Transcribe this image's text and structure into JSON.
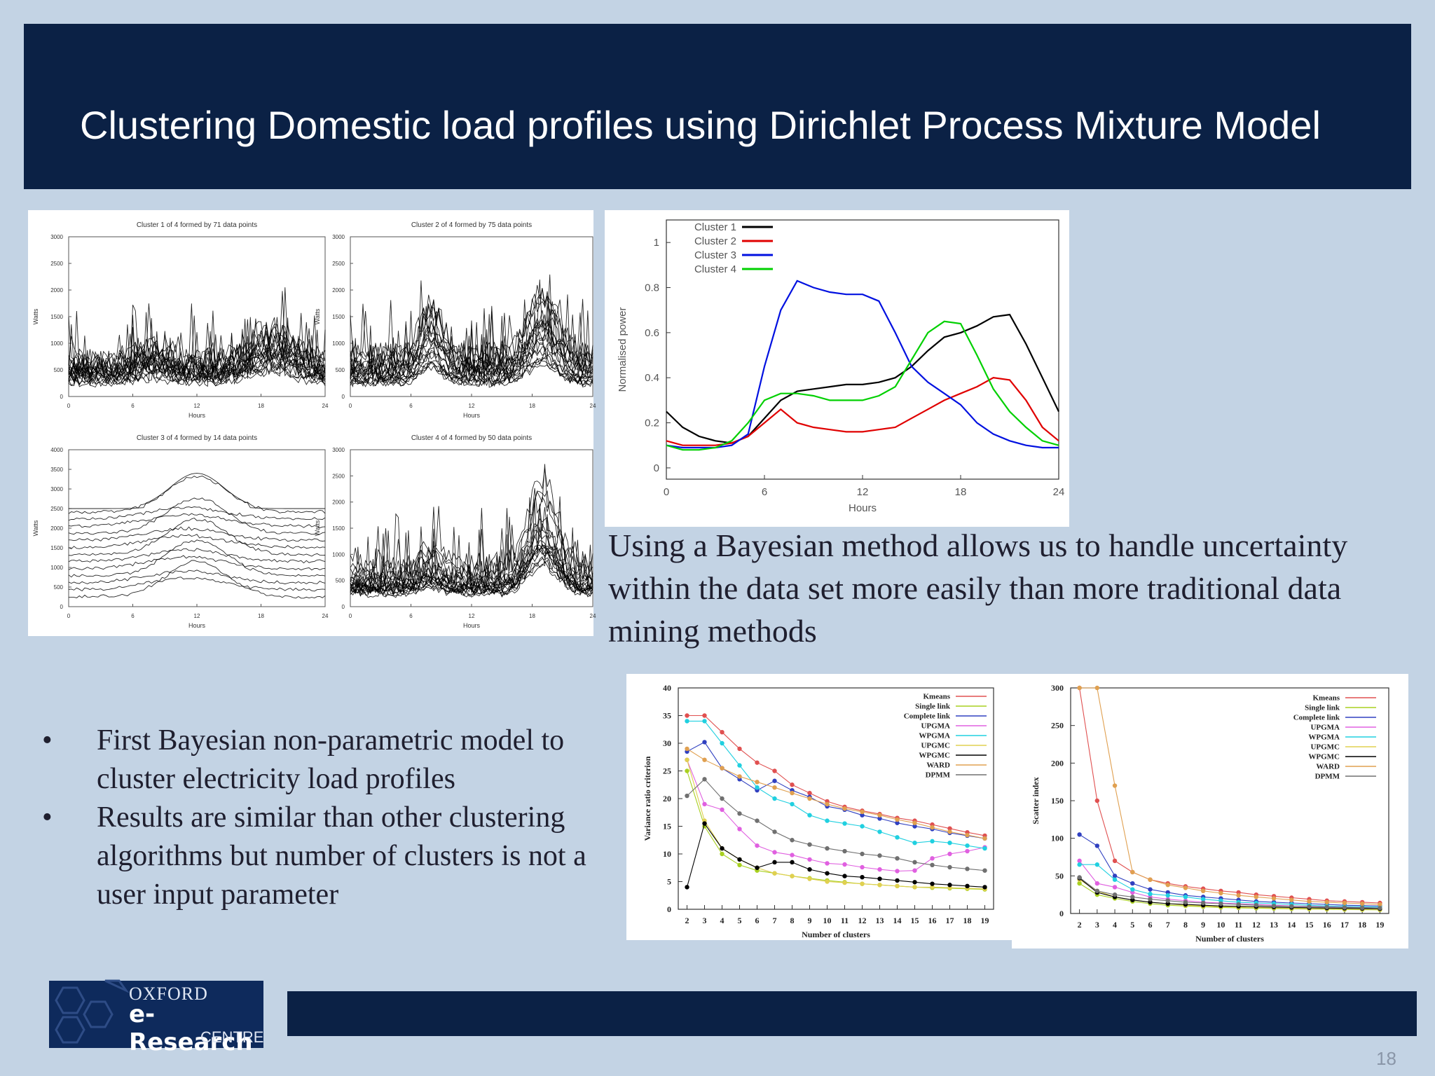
{
  "header": {
    "title": "Clustering Domestic load profiles using Dirichlet Process Mixture Model"
  },
  "paragraph": "Using a Bayesian method allows us to handle uncertainty within the data set more easily than more traditional data mining methods",
  "bullets": [
    {
      "marker": "•",
      "text": "First Bayesian non-parametric model to cluster electricity load profiles"
    },
    {
      "marker": "•",
      "text": "Results are similar than other clustering algorithms but number of clusters is not a user input parameter"
    }
  ],
  "logo": {
    "line1": "OXFORD",
    "line2": "e-Research",
    "line3": "CENTRE"
  },
  "page_number": "18",
  "colors": {
    "header_bg": "#0b2145",
    "slide_bg": "#c3d3e4",
    "text": "#1f1f2f"
  },
  "chart_data": [
    {
      "type": "line",
      "panel": "small-multiples",
      "subplots": [
        {
          "title": "Cluster 1 of 4 formed by 71 data points",
          "xlabel": "Hours",
          "ylabel": "Watts",
          "xticks": [
            "0",
            "6",
            "12",
            "18",
            "24"
          ],
          "yticks": [
            "0",
            "500",
            "1000",
            "1500",
            "2000",
            "2500",
            "3000"
          ],
          "ylim": [
            0,
            3000
          ]
        },
        {
          "title": "Cluster 2 of 4 formed by 75 data points",
          "xlabel": "Hours",
          "ylabel": "Watts",
          "xticks": [
            "0",
            "6",
            "12",
            "18",
            "24"
          ],
          "yticks": [
            "0",
            "500",
            "1000",
            "1500",
            "2000",
            "2500",
            "3000"
          ],
          "ylim": [
            0,
            3000
          ]
        },
        {
          "title": "Cluster 3 of 4 formed by 14 data points",
          "xlabel": "Hours",
          "ylabel": "Watts",
          "xticks": [
            "0",
            "6",
            "12",
            "18",
            "24"
          ],
          "yticks": [
            "0",
            "500",
            "1000",
            "1500",
            "2000",
            "2500",
            "3000",
            "3500",
            "4000"
          ],
          "ylim": [
            0,
            4000
          ]
        },
        {
          "title": "Cluster 4 of 4 formed by 50 data points",
          "xlabel": "Hours",
          "ylabel": "Watts",
          "xticks": [
            "0",
            "6",
            "12",
            "18",
            "24"
          ],
          "yticks": [
            "0",
            "500",
            "1000",
            "1500",
            "2000",
            "2500",
            "3000"
          ],
          "ylim": [
            0,
            3000
          ]
        }
      ]
    },
    {
      "type": "line",
      "xlabel": "Hours",
      "ylabel": "Normalised power",
      "xlim": [
        0,
        24
      ],
      "ylim": [
        -0.05,
        1.1
      ],
      "xticks": [
        0,
        6,
        12,
        18,
        24
      ],
      "yticks": [
        0,
        0.2,
        0.4,
        0.6,
        0.8,
        1
      ],
      "ytick_labels": [
        "0",
        "0.2",
        "0.4",
        "0.6",
        "0.8",
        "1"
      ],
      "legend_position": "top-left",
      "x": [
        0,
        1,
        2,
        3,
        4,
        5,
        6,
        7,
        8,
        9,
        10,
        11,
        12,
        13,
        14,
        15,
        16,
        17,
        18,
        19,
        20,
        21,
        22,
        23,
        24
      ],
      "series": [
        {
          "name": "Cluster 1",
          "color": "#000000",
          "values": [
            0.25,
            0.18,
            0.14,
            0.12,
            0.11,
            0.14,
            0.22,
            0.3,
            0.34,
            0.35,
            0.36,
            0.37,
            0.37,
            0.38,
            0.4,
            0.45,
            0.52,
            0.58,
            0.6,
            0.63,
            0.67,
            0.68,
            0.55,
            0.4,
            0.25
          ]
        },
        {
          "name": "Cluster 2",
          "color": "#e00000",
          "values": [
            0.12,
            0.1,
            0.1,
            0.1,
            0.11,
            0.14,
            0.2,
            0.26,
            0.2,
            0.18,
            0.17,
            0.16,
            0.16,
            0.17,
            0.18,
            0.22,
            0.26,
            0.3,
            0.33,
            0.36,
            0.4,
            0.39,
            0.3,
            0.18,
            0.12
          ]
        },
        {
          "name": "Cluster 3",
          "color": "#0010e0",
          "values": [
            0.1,
            0.09,
            0.09,
            0.09,
            0.1,
            0.15,
            0.45,
            0.7,
            0.83,
            0.8,
            0.78,
            0.77,
            0.77,
            0.74,
            0.6,
            0.45,
            0.38,
            0.33,
            0.28,
            0.2,
            0.15,
            0.12,
            0.1,
            0.09,
            0.09
          ]
        },
        {
          "name": "Cluster 4",
          "color": "#00d000",
          "values": [
            0.1,
            0.08,
            0.08,
            0.09,
            0.12,
            0.2,
            0.3,
            0.33,
            0.33,
            0.32,
            0.3,
            0.3,
            0.3,
            0.32,
            0.36,
            0.48,
            0.6,
            0.65,
            0.64,
            0.5,
            0.35,
            0.25,
            0.18,
            0.12,
            0.1
          ]
        }
      ]
    },
    {
      "type": "line",
      "xlabel": "Number of clusters",
      "ylabel": "Variance ratio criterion",
      "xlim": [
        1.5,
        19.5
      ],
      "ylim": [
        0,
        40
      ],
      "x": [
        2,
        3,
        4,
        5,
        6,
        7,
        8,
        9,
        10,
        11,
        12,
        13,
        14,
        15,
        16,
        17,
        18,
        19
      ],
      "yticks": [
        0,
        5,
        10,
        15,
        20,
        25,
        30,
        35,
        40
      ],
      "legend_position": "top-right",
      "series": [
        {
          "name": "Kmeans",
          "color": "#e05050",
          "values": [
            35,
            35,
            32,
            29,
            26.5,
            25,
            22.5,
            21,
            19.5,
            18.5,
            17.8,
            17.2,
            16.5,
            16,
            15.3,
            14.6,
            13.9,
            13.3
          ]
        },
        {
          "name": "Single link",
          "color": "#a8d020",
          "values": [
            25,
            15,
            10,
            8,
            7,
            6.5,
            6,
            5.6,
            5.2,
            4.9,
            4.6,
            4.4,
            4.2,
            4,
            3.9,
            3.8,
            3.7,
            3.6
          ]
        },
        {
          "name": "Complete link",
          "color": "#3040c0",
          "values": [
            28.5,
            30.2,
            25.5,
            23.5,
            21.5,
            23.2,
            21.5,
            20.3,
            18.6,
            18,
            17,
            16.4,
            15.6,
            15,
            14.5,
            13.8,
            13.3,
            12.8
          ]
        },
        {
          "name": "UPGMA",
          "color": "#e060e0",
          "values": [
            27,
            19,
            18,
            14.5,
            11.5,
            10.3,
            9.8,
            9,
            8.3,
            8.1,
            7.6,
            7.2,
            6.9,
            7,
            9.2,
            10,
            10.5,
            11.2
          ]
        },
        {
          "name": "WPGMA",
          "color": "#20d0e0",
          "values": [
            34,
            34,
            30,
            26,
            22,
            20,
            19,
            17,
            16,
            15.5,
            15,
            14,
            13,
            12,
            12.3,
            12,
            11.5,
            11
          ]
        },
        {
          "name": "UPGMC",
          "color": "#e0d050",
          "values": [
            27,
            16,
            11,
            9,
            7.5,
            6.5,
            6,
            5.5,
            5,
            4.8,
            4.6,
            4.4,
            4.2,
            4,
            4,
            3.9,
            3.8,
            3.7
          ]
        },
        {
          "name": "WPGMC",
          "color": "#000000",
          "values": [
            4,
            15.5,
            11,
            9,
            7.5,
            8.5,
            8.5,
            7.2,
            6.5,
            6,
            5.8,
            5.5,
            5.2,
            4.9,
            4.6,
            4.4,
            4.2,
            4
          ]
        },
        {
          "name": "WARD",
          "color": "#e0a050",
          "values": [
            29,
            27,
            25.5,
            24,
            23,
            22,
            21,
            20,
            19,
            18.2,
            17.6,
            17,
            16.2,
            15.6,
            14.8,
            14,
            13.4,
            12.8
          ]
        },
        {
          "name": "DPMM",
          "color": "#707070",
          "values": [
            20.5,
            23.5,
            20,
            17.3,
            16,
            14,
            12.5,
            11.7,
            11,
            10.5,
            10,
            9.7,
            9.2,
            8.5,
            8,
            7.6,
            7.3,
            7
          ]
        }
      ]
    },
    {
      "type": "line",
      "xlabel": "Number of clusters",
      "ylabel": "Scatter index",
      "xlim": [
        1.5,
        19.5
      ],
      "ylim": [
        0,
        300
      ],
      "x": [
        2,
        3,
        4,
        5,
        6,
        7,
        8,
        9,
        10,
        11,
        12,
        13,
        14,
        15,
        16,
        17,
        18,
        19
      ],
      "yticks": [
        0,
        50,
        100,
        150,
        200,
        250,
        300
      ],
      "legend_position": "top-right",
      "series": [
        {
          "name": "Kmeans",
          "color": "#e05050",
          "values": [
            300,
            150,
            70,
            55,
            45,
            40,
            36,
            33,
            30,
            28,
            25,
            23,
            21,
            19,
            17,
            16,
            15,
            14
          ]
        },
        {
          "name": "Single link",
          "color": "#a8d020",
          "values": [
            40,
            25,
            20,
            16,
            13,
            11,
            10,
            9,
            8,
            7.5,
            7,
            6.6,
            6.2,
            5.9,
            5.6,
            5.3,
            5,
            4.8
          ]
        },
        {
          "name": "Complete link",
          "color": "#3040c0",
          "values": [
            105,
            90,
            50,
            40,
            32,
            28,
            24,
            22,
            20,
            18,
            16,
            15,
            14,
            13,
            12,
            11,
            10.5,
            10
          ]
        },
        {
          "name": "UPGMA",
          "color": "#e060e0",
          "values": [
            70,
            40,
            35,
            28,
            22,
            19,
            17,
            15,
            14,
            13,
            12,
            11,
            10,
            9.5,
            9,
            8.5,
            8,
            7.5
          ]
        },
        {
          "name": "WPGMA",
          "color": "#20d0e0",
          "values": [
            65,
            65,
            45,
            32,
            26,
            24,
            22,
            19,
            17,
            15,
            14,
            13,
            12,
            11,
            10,
            9.5,
            9,
            8.5
          ]
        },
        {
          "name": "UPGMC",
          "color": "#e0d050",
          "values": [
            45,
            30,
            22,
            18,
            15,
            13,
            11,
            10,
            9,
            8.5,
            8,
            7.5,
            7,
            6.6,
            6.2,
            5.9,
            5.6,
            5.3
          ]
        },
        {
          "name": "WPGMC",
          "color": "#000000",
          "values": [
            47,
            28,
            22,
            18,
            15,
            13,
            12,
            11,
            10,
            9.5,
            9,
            8.5,
            8,
            7.6,
            7.2,
            6.9,
            6.6,
            6.3
          ]
        },
        {
          "name": "WARD",
          "color": "#e0a050",
          "values": [
            300,
            300,
            170,
            55,
            45,
            38,
            34,
            30,
            27,
            24,
            22,
            20,
            18,
            16,
            15,
            14,
            13,
            12
          ]
        },
        {
          "name": "DPMM",
          "color": "#707070",
          "values": [
            48,
            30,
            25,
            22,
            19,
            17,
            15,
            14,
            13,
            12,
            11,
            10,
            9.5,
            9,
            8.5,
            8,
            7.6,
            7.2
          ]
        }
      ]
    }
  ]
}
